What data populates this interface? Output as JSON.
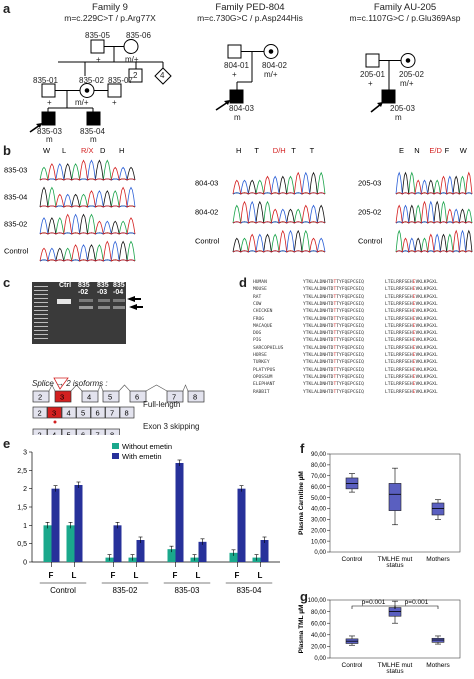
{
  "panels": {
    "a": "a",
    "b": "b",
    "c": "c",
    "d": "d",
    "e": "e",
    "f": "f",
    "g": "g"
  },
  "families": [
    {
      "title": "Family 9",
      "mutation": "m=c.229C>T / p.Arg77X"
    },
    {
      "title": "Family PED-804",
      "mutation": "m=c.730G>C / p.Asp244His"
    },
    {
      "title": "Family AU-205",
      "mutation": "m=c.1107G>C / p.Glu369Asp"
    }
  ],
  "pedigree9": {
    "ids": [
      "835-05",
      "835-06",
      "835-01",
      "835-02",
      "835-07",
      "835-03",
      "835-04"
    ],
    "sibs": [
      "2",
      "4"
    ],
    "genos": [
      "+",
      "m/+",
      "+",
      "m/+",
      "+",
      "m",
      "m"
    ]
  },
  "pedigree804": {
    "ids": [
      "804-01",
      "804-02",
      "804-03"
    ],
    "genos": [
      "+",
      "m/+",
      "m"
    ]
  },
  "pedigree205": {
    "ids": [
      "205-01",
      "205-02",
      "205-03"
    ],
    "genos": [
      "+",
      "m/+",
      "m"
    ]
  },
  "chrom": {
    "f9_rows": [
      "835-03",
      "835-04",
      "835-02",
      "Control"
    ],
    "f9_aa": [
      "W",
      "L",
      "R/X",
      "D",
      "H"
    ],
    "f804_rows": [
      "804-03",
      "804-02",
      "Control"
    ],
    "f804_aa": [
      "H",
      "T",
      "D/H",
      "T",
      "T"
    ],
    "f205_rows": [
      "205-03",
      "205-02",
      "Control"
    ],
    "f205_aa": [
      "E",
      "N",
      "E/D",
      "F",
      "W"
    ]
  },
  "gel": {
    "lanes": [
      "Ctrl",
      "835\n-02",
      "835\n-03",
      "835\n-04"
    ]
  },
  "splice": {
    "exons_top": [
      "2",
      "3",
      "4",
      "5",
      "6",
      "7",
      "8"
    ],
    "label": "Splice → 2 isoforms :",
    "full_label": "Full-length",
    "skip_label": "Exon 3 skipping"
  },
  "alignment": {
    "species": [
      "HUMAN",
      "MOUSE",
      "RAT",
      "COW",
      "CHICKEN",
      "FROG",
      "MACAQUE",
      "DOG",
      "PIG",
      "SARCOPHILUS",
      "HORSE",
      "TURKEY",
      "PLATYPUS",
      "OPOSSUM",
      "ELEPHANT",
      "RABBIT"
    ],
    "seq1": "YTKLALDNHTDTTYFQEPCGIQ",
    "seq2": "LTELRRFSEHEVKLKPGXL"
  },
  "chart_e": {
    "legend": [
      "Without emetin",
      "With emetin"
    ],
    "ylim": [
      0,
      3
    ],
    "yticks": [
      "0",
      "0,5",
      "1",
      "1,5",
      "2",
      "2,5",
      "3"
    ],
    "groups": [
      "Control",
      "835-02",
      "835-03",
      "835-04"
    ],
    "sub": [
      "F",
      "L"
    ],
    "without": [
      1.0,
      1.0,
      0.12,
      0.12,
      0.35,
      0.12,
      0.25,
      0.12
    ],
    "with": [
      2.0,
      2.1,
      1.0,
      0.6,
      2.7,
      0.55,
      2.0,
      0.6
    ],
    "colors": {
      "without": "#1aa88c",
      "with": "#27319a"
    }
  },
  "chart_f": {
    "ylabel": "Plasma Carnitine µM",
    "yticks": [
      "0,00",
      "10,00",
      "20,00",
      "30,00",
      "40,00",
      "50,00",
      "60,00",
      "70,00",
      "80,00",
      "90,00"
    ],
    "categories": [
      "Control",
      "TMLHE mut status",
      "Mothers"
    ],
    "boxes": [
      {
        "min": 55,
        "q1": 58,
        "median": 63,
        "q3": 68,
        "max": 72
      },
      {
        "min": 25,
        "q1": 38,
        "median": 53,
        "q3": 63,
        "max": 77
      },
      {
        "min": 30,
        "q1": 34,
        "median": 40,
        "q3": 45,
        "max": 48
      }
    ]
  },
  "chart_g": {
    "ylabel": "Plasma TML µM",
    "yticks": [
      "0,00",
      "20,00",
      "40,00",
      "60,00",
      "80,00",
      "100,00"
    ],
    "categories": [
      "Control",
      "TMLHE mut status",
      "Mothers"
    ],
    "pvals": [
      "p=0.001",
      "p=0.001"
    ],
    "boxes": [
      {
        "min": 22,
        "q1": 25,
        "median": 29,
        "q3": 33,
        "max": 38
      },
      {
        "min": 60,
        "q1": 72,
        "median": 80,
        "q3": 87,
        "max": 98
      },
      {
        "min": 24,
        "q1": 27,
        "median": 31,
        "q3": 34,
        "max": 38
      }
    ]
  }
}
